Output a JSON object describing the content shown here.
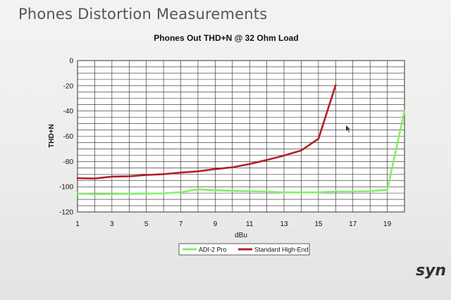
{
  "slide": {
    "title": "Phones Distortion Measurements",
    "brand": "syn"
  },
  "colors": {
    "adi": "#86ee6a",
    "standard": "#b41f24",
    "grid": "#222222",
    "plot_bg": "#ffffff"
  },
  "chart_data": {
    "type": "line",
    "title": "Phones Out THD+N @ 32 Ohm Load",
    "xlabel": "dBu",
    "ylabel": "THD+N",
    "xlim": [
      1,
      20
    ],
    "ylim": [
      -120,
      0
    ],
    "x_ticks": [
      "1",
      "3",
      "5",
      "7",
      "9",
      "11",
      "13",
      "15",
      "17",
      "19"
    ],
    "y_ticks": [
      "0",
      "-20",
      "-40",
      "-60",
      "-80",
      "-100",
      "-120"
    ],
    "grid": true,
    "legend_position": "bottom",
    "series": [
      {
        "name": "ADI-2 Pro",
        "color": "#86ee6a",
        "points": [
          [
            1,
            -105.5
          ],
          [
            2,
            -105.8
          ],
          [
            3,
            -105.7
          ],
          [
            4,
            -105.6
          ],
          [
            5,
            -105.5
          ],
          [
            6,
            -105.2
          ],
          [
            7,
            -104.3
          ],
          [
            8,
            -102
          ],
          [
            9,
            -102.8
          ],
          [
            10,
            -103.3
          ],
          [
            11,
            -103.6
          ],
          [
            12,
            -103.8
          ],
          [
            13,
            -104.5
          ],
          [
            14,
            -104.5
          ],
          [
            15,
            -104.5
          ],
          [
            16,
            -103.8
          ],
          [
            17,
            -103.8
          ],
          [
            18,
            -103.6
          ],
          [
            19,
            -102.5
          ],
          [
            20,
            -40
          ]
        ]
      },
      {
        "name": "Standard High-End",
        "color": "#b41f24",
        "points": [
          [
            1,
            -93.2
          ],
          [
            2,
            -93.5
          ],
          [
            3,
            -92
          ],
          [
            4,
            -91.7
          ],
          [
            5,
            -90.7
          ],
          [
            6,
            -90
          ],
          [
            7,
            -88.8
          ],
          [
            8,
            -87.8
          ],
          [
            9,
            -86
          ],
          [
            10,
            -84.6
          ],
          [
            11,
            -82
          ],
          [
            12,
            -78.8
          ],
          [
            13,
            -75.3
          ],
          [
            14,
            -71.2
          ],
          [
            15,
            -62
          ],
          [
            16,
            -19.5
          ]
        ]
      }
    ]
  }
}
